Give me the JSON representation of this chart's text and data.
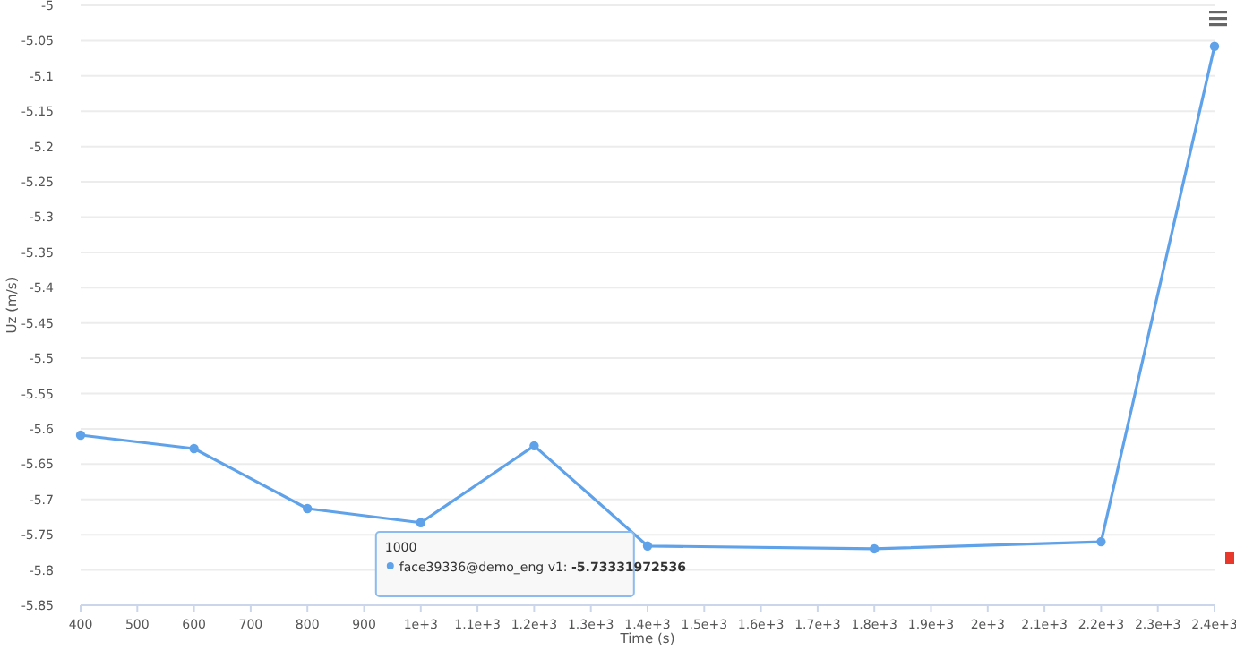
{
  "chart_data": {
    "type": "line",
    "xlabel": "Time (s)",
    "ylabel": "Uz (m/s)",
    "x": [
      400,
      600,
      800,
      1000,
      1200,
      1400,
      1800,
      2200,
      2400
    ],
    "series": [
      {
        "color": "#5fa2ea",
        "values": [
          -5.609,
          -5.628,
          -5.713,
          -5.733,
          -5.624,
          -5.766,
          -5.77,
          -5.76,
          -5.058
        ]
      }
    ],
    "xlim": [
      400,
      2400
    ],
    "xticks": [
      400,
      500,
      600,
      700,
      800,
      900,
      {
        "value": 1000,
        "label": "1e+3"
      },
      {
        "value": 1100,
        "label": "1.1e+3"
      },
      {
        "value": 1200,
        "label": "1.2e+3"
      },
      {
        "value": 1300,
        "label": "1.3e+3"
      },
      {
        "value": 1400,
        "label": "1.4e+3"
      },
      {
        "value": 1500,
        "label": "1.5e+3"
      },
      {
        "value": 1600,
        "label": "1.6e+3"
      },
      {
        "value": 1700,
        "label": "1.7e+3"
      },
      {
        "value": 1800,
        "label": "1.8e+3"
      },
      {
        "value": 1900,
        "label": "1.9e+3"
      },
      {
        "value": 2000,
        "label": "2e+3"
      },
      {
        "value": 2100,
        "label": "2.1e+3"
      },
      {
        "value": 2200,
        "label": "2.2e+3"
      },
      {
        "value": 2300,
        "label": "2.3e+3"
      },
      {
        "value": 2400,
        "label": "2.4e+3"
      }
    ],
    "ylim": [
      -5.85,
      -5
    ],
    "yticks": [
      -5.85,
      -5.8,
      -5.75,
      -5.7,
      -5.65,
      -5.6,
      -5.55,
      -5.5,
      -5.45,
      -5.4,
      -5.35,
      -5.3,
      -5.25,
      -5.2,
      -5.15,
      -5.1,
      -5.05,
      -5
    ],
    "grid": "y",
    "marker": "circle",
    "line_style": "solid",
    "annotations": [
      {
        "text": "1000\nface39336@demo_eng v1: -5.73331972536",
        "x": 1000,
        "y": -5.73331972536
      }
    ]
  }
}
